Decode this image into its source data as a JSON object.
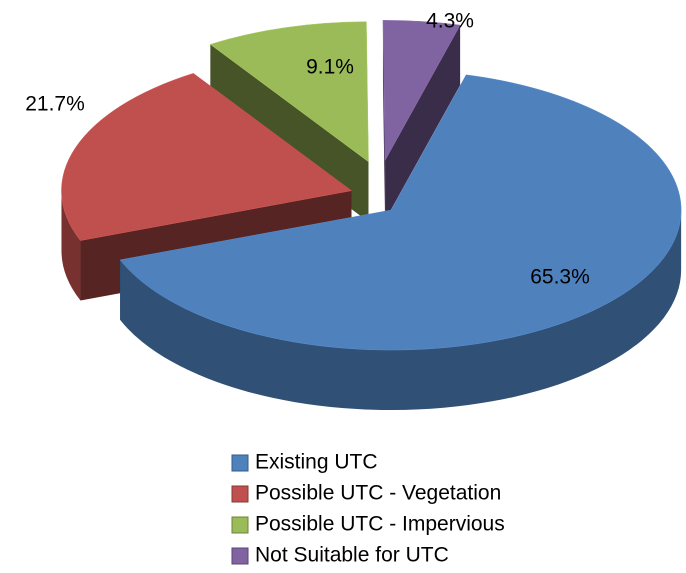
{
  "chart_data": {
    "type": "pie",
    "categories": [
      "Existing UTC",
      "Possible UTC - Vegetation",
      "Possible UTC - Impervious",
      "Not Suitable for UTC"
    ],
    "values": [
      65.3,
      21.7,
      9.1,
      4.3
    ],
    "value_labels": [
      "65.3%",
      "21.7%",
      "9.1%",
      "4.3%"
    ],
    "colors": [
      "#4f81bd",
      "#c0504d",
      "#9bbb59",
      "#8064a2"
    ],
    "legend": "bottom"
  }
}
